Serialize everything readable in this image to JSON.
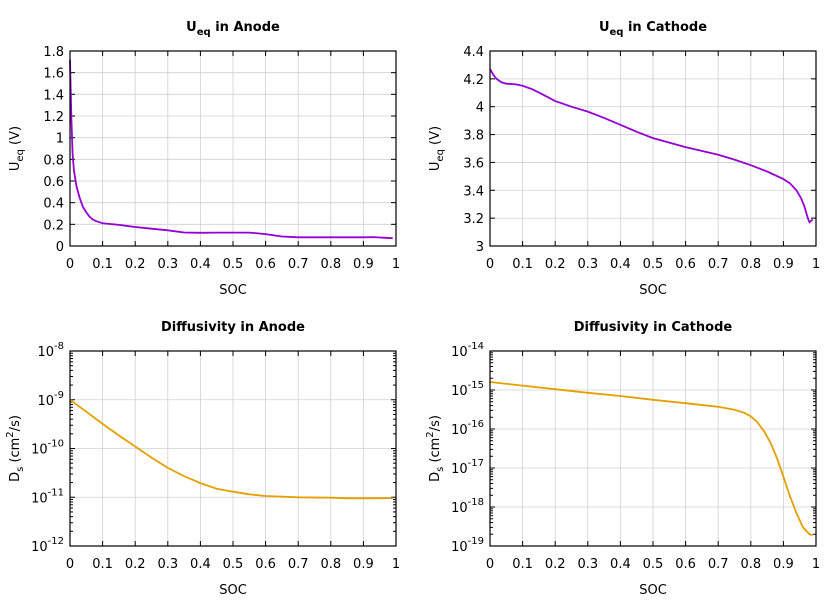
{
  "chart_data": [
    {
      "type": "line",
      "title": {
        "main": "U",
        "sub": "eq",
        "rest": " in Anode"
      },
      "xlabel": "SOC",
      "ylabel": {
        "main": "U",
        "sub": "eq",
        "rest": " (V)"
      },
      "xlim": [
        0,
        1
      ],
      "ylim": [
        0,
        1.8
      ],
      "yscale": "linear",
      "grid": true,
      "xticks": [
        0,
        0.1,
        0.2,
        0.3,
        0.4,
        0.5,
        0.6,
        0.7,
        0.8,
        0.9,
        1
      ],
      "yticks": [
        0,
        0.2,
        0.4,
        0.6,
        0.8,
        1,
        1.2,
        1.4,
        1.6,
        1.8
      ],
      "color": "#9400d3",
      "x": [
        0,
        0.004,
        0.008,
        0.012,
        0.02,
        0.03,
        0.04,
        0.05,
        0.06,
        0.07,
        0.08,
        0.1,
        0.15,
        0.2,
        0.25,
        0.3,
        0.35,
        0.4,
        0.45,
        0.5,
        0.55,
        0.6,
        0.65,
        0.7,
        0.8,
        0.9,
        0.93,
        0.99
      ],
      "y": [
        1.72,
        1.2,
        0.85,
        0.7,
        0.55,
        0.44,
        0.36,
        0.31,
        0.27,
        0.245,
        0.23,
        0.21,
        0.195,
        0.175,
        0.16,
        0.145,
        0.125,
        0.122,
        0.124,
        0.124,
        0.124,
        0.11,
        0.088,
        0.08,
        0.08,
        0.08,
        0.082,
        0.072
      ]
    },
    {
      "type": "line",
      "title": {
        "main": "U",
        "sub": "eq",
        "rest": " in Cathode"
      },
      "xlabel": "SOC",
      "ylabel": {
        "main": "U",
        "sub": "eq",
        "rest": " (V)"
      },
      "xlim": [
        0,
        1
      ],
      "ylim": [
        3,
        4.4
      ],
      "yscale": "linear",
      "grid": true,
      "xticks": [
        0,
        0.1,
        0.2,
        0.3,
        0.4,
        0.5,
        0.6,
        0.7,
        0.8,
        0.9,
        1
      ],
      "yticks": [
        3,
        3.2,
        3.4,
        3.6,
        3.8,
        4,
        4.2,
        4.4
      ],
      "color": "#9400d3",
      "x": [
        0,
        0.01,
        0.02,
        0.035,
        0.05,
        0.08,
        0.1,
        0.13,
        0.16,
        0.2,
        0.25,
        0.3,
        0.35,
        0.4,
        0.45,
        0.5,
        0.6,
        0.7,
        0.75,
        0.8,
        0.85,
        0.9,
        0.92,
        0.94,
        0.955,
        0.965,
        0.975,
        0.98,
        0.99
      ],
      "y": [
        4.27,
        4.23,
        4.2,
        4.175,
        4.165,
        4.16,
        4.15,
        4.125,
        4.09,
        4.04,
        4.0,
        3.965,
        3.92,
        3.87,
        3.82,
        3.775,
        3.71,
        3.655,
        3.62,
        3.58,
        3.535,
        3.48,
        3.45,
        3.4,
        3.34,
        3.28,
        3.2,
        3.17,
        3.19
      ]
    },
    {
      "type": "line",
      "title": {
        "main": "Diffusivity in Anode",
        "sub": "",
        "rest": ""
      },
      "xlabel": "SOC",
      "ylabel": {
        "main": "D",
        "sub": "s",
        "rest": " (cm",
        "sup": "2",
        "rest2": "/s)"
      },
      "xlim": [
        0,
        1
      ],
      "ylim": [
        1e-12,
        1e-08
      ],
      "yscale": "log",
      "grid": true,
      "xticks": [
        0,
        0.1,
        0.2,
        0.3,
        0.4,
        0.5,
        0.6,
        0.7,
        0.8,
        0.9,
        1
      ],
      "ytick_exponents": [
        -12,
        -11,
        -10,
        -9,
        -8
      ],
      "color": "#e69f00",
      "x": [
        0,
        0.05,
        0.1,
        0.15,
        0.2,
        0.25,
        0.3,
        0.35,
        0.4,
        0.45,
        0.5,
        0.55,
        0.6,
        0.7,
        0.8,
        0.85,
        0.9,
        0.99
      ],
      "y": [
        1e-09,
        5.7e-10,
        3.2e-10,
        1.85e-10,
        1.1e-10,
        6.5e-11,
        4e-11,
        2.7e-11,
        1.95e-11,
        1.5e-11,
        1.3e-11,
        1.15e-11,
        1.06e-11,
        1e-11,
        9.8e-12,
        9.5e-12,
        9.5e-12,
        9.6e-12
      ]
    },
    {
      "type": "line",
      "title": {
        "main": "Diffusivity in Cathode",
        "sub": "",
        "rest": ""
      },
      "xlabel": "SOC",
      "ylabel": {
        "main": "D",
        "sub": "s",
        "rest": " (cm",
        "sup": "2",
        "rest2": "/s)"
      },
      "xlim": [
        0,
        1
      ],
      "ylim": [
        1e-19,
        1e-14
      ],
      "yscale": "log",
      "grid": true,
      "xticks": [
        0,
        0.1,
        0.2,
        0.3,
        0.4,
        0.5,
        0.6,
        0.7,
        0.8,
        0.9,
        1
      ],
      "ytick_exponents": [
        -19,
        -18,
        -17,
        -16,
        -15,
        -14
      ],
      "color": "#e69f00",
      "x": [
        0,
        0.1,
        0.2,
        0.3,
        0.4,
        0.5,
        0.6,
        0.7,
        0.75,
        0.78,
        0.8,
        0.82,
        0.84,
        0.86,
        0.88,
        0.9,
        0.92,
        0.94,
        0.96,
        0.98,
        0.99
      ],
      "y": [
        1.6e-15,
        1.3e-15,
        1.05e-15,
        8.5e-16,
        7e-16,
        5.6e-16,
        4.6e-16,
        3.7e-16,
        3.1e-16,
        2.6e-16,
        2.1e-16,
        1.5e-16,
        9e-17,
        4.5e-17,
        1.8e-17,
        6e-18,
        1.9e-18,
        7e-19,
        3e-19,
        2e-19,
        1.9e-19
      ]
    }
  ]
}
